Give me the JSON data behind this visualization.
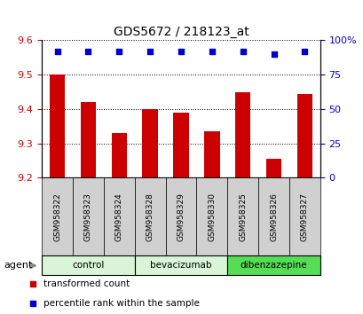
{
  "title": "GDS5672 / 218123_at",
  "samples": [
    "GSM958322",
    "GSM958323",
    "GSM958324",
    "GSM958328",
    "GSM958329",
    "GSM958330",
    "GSM958325",
    "GSM958326",
    "GSM958327"
  ],
  "bar_values": [
    9.5,
    9.42,
    9.33,
    9.4,
    9.39,
    9.335,
    9.45,
    9.255,
    9.445
  ],
  "percentile_values": [
    92,
    92,
    92,
    92,
    92,
    92,
    92,
    90,
    92
  ],
  "ylim_left": [
    9.2,
    9.6
  ],
  "ylim_right": [
    0,
    100
  ],
  "yticks_left": [
    9.2,
    9.3,
    9.4,
    9.5,
    9.6
  ],
  "yticks_right": [
    0,
    25,
    50,
    75,
    100
  ],
  "bar_color": "#cc0000",
  "dot_color": "#0000cc",
  "groups": [
    {
      "label": "control",
      "start": 0,
      "end": 3,
      "color": "#d8f5d8"
    },
    {
      "label": "bevacizumab",
      "start": 3,
      "end": 6,
      "color": "#d8f5d8"
    },
    {
      "label": "dibenzazepine",
      "start": 6,
      "end": 9,
      "color": "#55dd55"
    }
  ],
  "agent_label": "agent",
  "legend_items": [
    {
      "label": "transformed count",
      "color": "#cc0000"
    },
    {
      "label": "percentile rank within the sample",
      "color": "#0000cc"
    }
  ],
  "tick_color_left": "#cc0000",
  "tick_color_right": "#0000cc",
  "bar_width": 0.5,
  "sample_box_color": "#d0d0d0"
}
